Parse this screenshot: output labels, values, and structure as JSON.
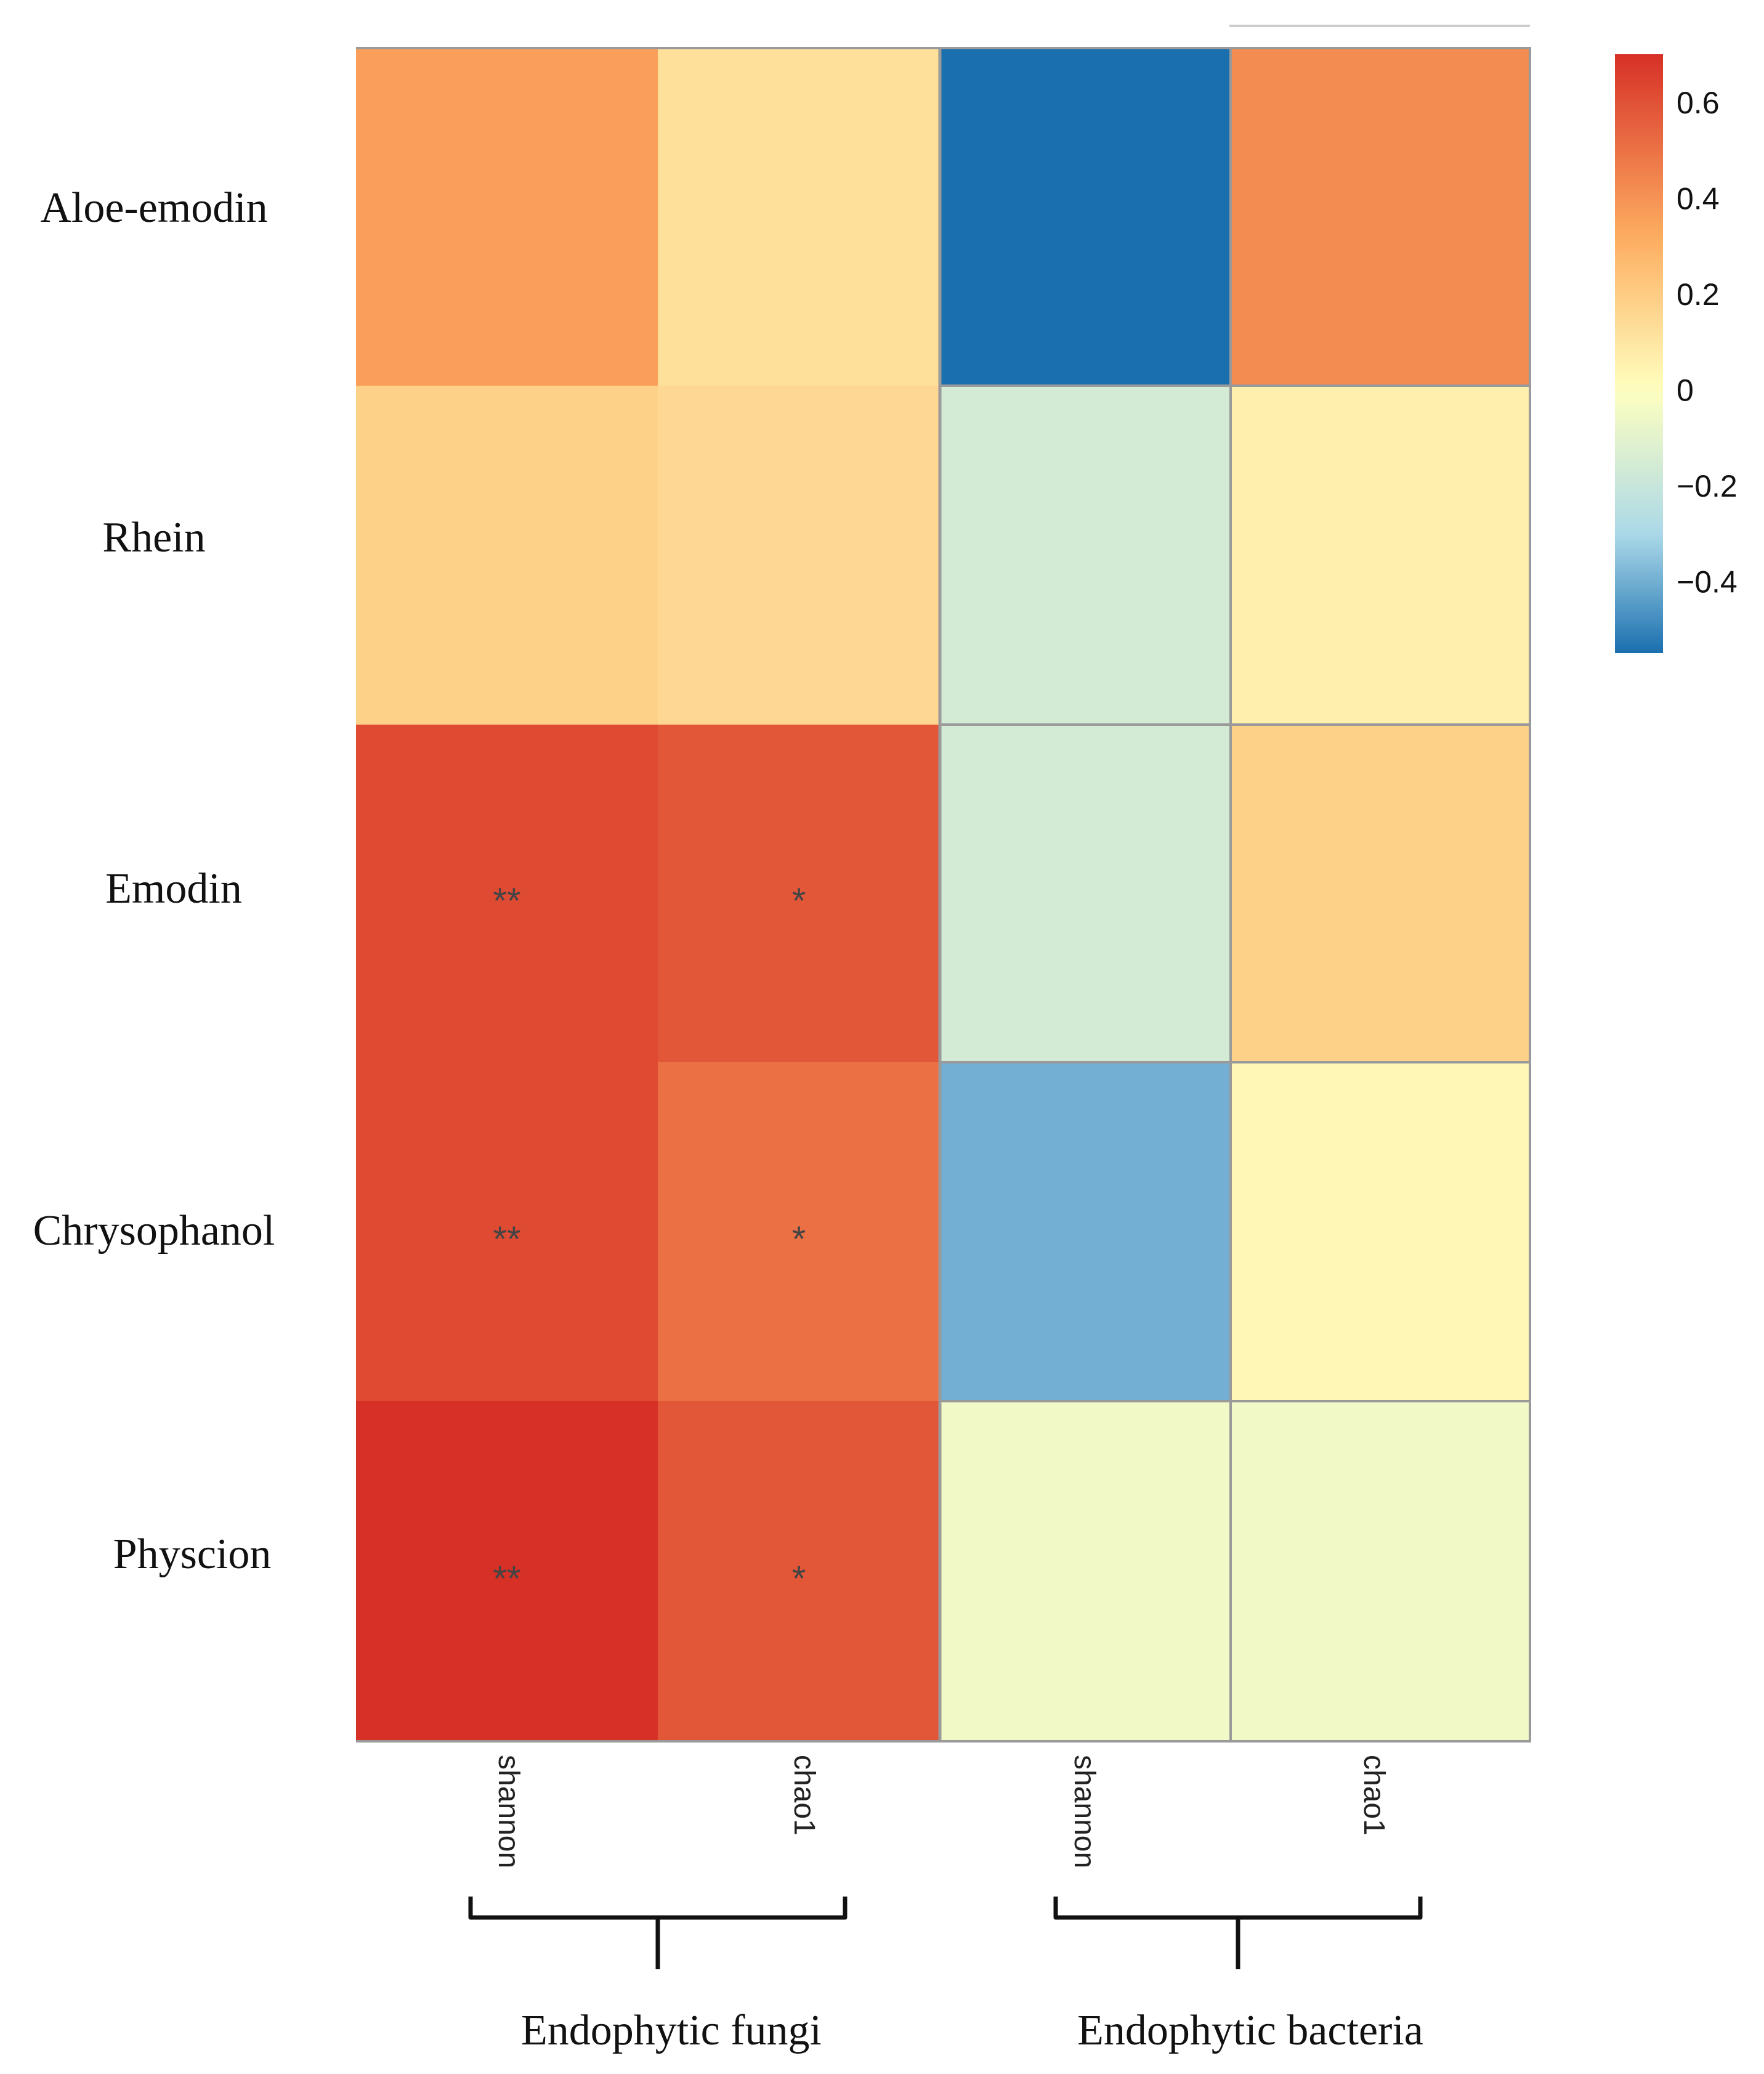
{
  "chart_data": {
    "type": "heatmap",
    "title": "",
    "rows": [
      "Aloe-emodin",
      "Rhein",
      "Emodin",
      "Chrysophanol",
      "Physcion"
    ],
    "columns": [
      "shannon",
      "chao1",
      "shannon",
      "chao1"
    ],
    "column_groups": [
      {
        "name": "Endophytic fungi",
        "columns": [
          0,
          1
        ]
      },
      {
        "name": "Endophytic bacteria",
        "columns": [
          2,
          3
        ]
      }
    ],
    "values": [
      [
        0.36,
        0.12,
        -0.55,
        0.42
      ],
      [
        0.18,
        0.15,
        -0.16,
        0.06
      ],
      [
        0.62,
        0.58,
        -0.16,
        0.18
      ],
      [
        0.62,
        0.5,
        -0.4,
        0.03
      ],
      [
        0.7,
        0.58,
        -0.05,
        -0.05
      ]
    ],
    "significance": [
      [
        "",
        "",
        "",
        ""
      ],
      [
        "",
        "",
        "",
        ""
      ],
      [
        "**",
        "*",
        "",
        ""
      ],
      [
        "**",
        "*",
        "",
        ""
      ],
      [
        "**",
        "*",
        "",
        ""
      ]
    ],
    "colorbar": {
      "range": [
        -0.55,
        0.7
      ],
      "ticks": [
        0.6,
        0.4,
        0.2,
        0,
        -0.2,
        -0.4
      ],
      "tick_labels": [
        "0.6",
        "0.4",
        "0.2",
        "0",
        "−0.2",
        "−0.4"
      ],
      "colors": {
        "high": "#d73027",
        "mid_high": "#fdae61",
        "mid": "#ffffbf",
        "mid_low": "#abd9e9",
        "low": "#1a6faf"
      }
    }
  }
}
